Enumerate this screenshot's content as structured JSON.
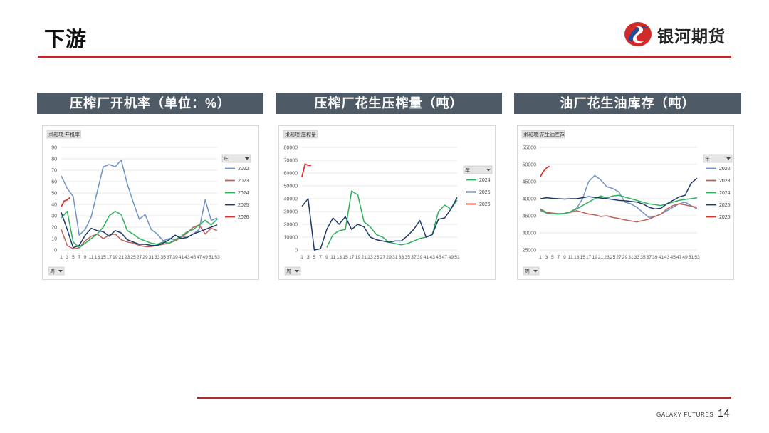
{
  "page": {
    "title": "下游",
    "brand": "银河期货",
    "footer": "GALAXY FUTURES",
    "page_number": "14"
  },
  "colors": {
    "2022": "#6f93c6",
    "2023": "#c0625a",
    "2024": "#2db15c",
    "2025": "#1f3a68",
    "2026": "#d8342c"
  },
  "panels": [
    {
      "header": "压榨厂开机率（单位：%）"
    },
    {
      "header": "压榨厂花生压榨量（吨）"
    },
    {
      "header": "油厂花生油库存（吨）"
    }
  ],
  "chart_data": [
    {
      "type": "line",
      "field_tag": "求和项:开机率",
      "axis_button": "周",
      "legend_title": "年",
      "ylim": [
        0,
        90
      ],
      "yticks": [
        0,
        10,
        20,
        30,
        40,
        50,
        60,
        70,
        80,
        90
      ],
      "xticks": [
        "1",
        "3",
        "5",
        "7",
        "9",
        "11",
        "13",
        "15",
        "17",
        "19",
        "21",
        "23",
        "25",
        "27",
        "29",
        "31",
        "33",
        "35",
        "37",
        "39",
        "41",
        "43",
        "45",
        "47",
        "49",
        "51",
        "53"
      ],
      "x_range": [
        1,
        53
      ],
      "series": [
        {
          "name": "2022",
          "x": [
            1,
            3,
            5,
            7,
            9,
            11,
            13,
            15,
            17,
            19,
            21,
            23,
            25,
            27,
            29,
            31,
            33,
            35,
            37,
            39,
            41,
            43,
            45,
            47,
            49,
            51,
            53
          ],
          "values": [
            65,
            54,
            47,
            13,
            18,
            29,
            51,
            73,
            75,
            73,
            79,
            58,
            42,
            27,
            31,
            18,
            14,
            8,
            10,
            9,
            12,
            11,
            14,
            18,
            44,
            26,
            28
          ]
        },
        {
          "name": "2023",
          "x": [
            1,
            3,
            5,
            7,
            9,
            11,
            13,
            15,
            17,
            19,
            21,
            23,
            25,
            27,
            29,
            31,
            33,
            35,
            37,
            39,
            41,
            43,
            45,
            47,
            49,
            51,
            53
          ],
          "values": [
            18,
            4,
            1,
            2,
            8,
            12,
            14,
            10,
            13,
            14,
            9,
            7,
            6,
            4,
            3,
            3,
            4,
            5,
            6,
            8,
            11,
            15,
            20,
            22,
            14,
            19,
            17
          ]
        },
        {
          "name": "2024",
          "x": [
            1,
            3,
            5,
            7,
            9,
            11,
            13,
            15,
            17,
            19,
            21,
            23,
            25,
            27,
            29,
            31,
            33,
            35,
            37,
            39,
            41,
            43,
            45,
            47,
            49,
            51,
            53
          ],
          "values": [
            28,
            34,
            7,
            2,
            6,
            10,
            14,
            20,
            30,
            34,
            31,
            17,
            14,
            10,
            8,
            6,
            5,
            7,
            6,
            9,
            12,
            16,
            18,
            22,
            26,
            22,
            27
          ]
        },
        {
          "name": "2025",
          "x": [
            1,
            3,
            5,
            7,
            9,
            11,
            13,
            15,
            17,
            19,
            21,
            23,
            25,
            27,
            29,
            31,
            33,
            35,
            37,
            39,
            41,
            43,
            45,
            47,
            49,
            51,
            53
          ],
          "values": [
            33,
            18,
            2,
            4,
            13,
            19,
            17,
            16,
            12,
            17,
            15,
            9,
            7,
            5,
            5,
            4,
            4,
            6,
            9,
            13,
            10,
            11,
            14,
            16,
            18,
            20,
            22
          ]
        },
        {
          "name": "2026",
          "x": [
            1,
            2,
            3,
            4
          ],
          "values": [
            38,
            43,
            44,
            46
          ]
        }
      ]
    },
    {
      "type": "line",
      "field_tag": "求和项:压榨量",
      "axis_button": "周",
      "legend_title": "年",
      "ylim": [
        0,
        80000
      ],
      "yticks": [
        0,
        10000,
        20000,
        30000,
        40000,
        50000,
        60000,
        70000,
        80000
      ],
      "xticks": [
        "1",
        "3",
        "5",
        "7",
        "9",
        "11",
        "13",
        "15",
        "17",
        "19",
        "21",
        "23",
        "25",
        "27",
        "29",
        "31",
        "33",
        "35",
        "37",
        "39",
        "41",
        "43",
        "45",
        "47",
        "49",
        "51"
      ],
      "x_range": [
        1,
        51
      ],
      "series": [
        {
          "name": "2024",
          "x": [
            9,
            11,
            13,
            15,
            17,
            19,
            21,
            23,
            25,
            27,
            29,
            31,
            33,
            35,
            37,
            39,
            41,
            43,
            45,
            47,
            49,
            51
          ],
          "values": [
            2000,
            12000,
            15000,
            16000,
            46000,
            43000,
            22000,
            18000,
            12000,
            10000,
            6000,
            5000,
            4000,
            5000,
            7000,
            9000,
            10000,
            12000,
            30000,
            35000,
            32000,
            39000
          ]
        },
        {
          "name": "2025",
          "x": [
            1,
            3,
            5,
            7,
            9,
            11,
            13,
            15,
            17,
            19,
            21,
            23,
            25,
            27,
            29,
            31,
            33,
            35,
            37,
            39,
            41,
            43,
            45,
            47,
            49,
            51
          ],
          "values": [
            34000,
            40000,
            0,
            1000,
            16000,
            25000,
            20000,
            26000,
            16000,
            20000,
            18000,
            10000,
            8000,
            7000,
            6000,
            7000,
            7000,
            11000,
            16000,
            23000,
            10000,
            12000,
            24000,
            25000,
            32000,
            41000
          ]
        },
        {
          "name": "2026",
          "x": [
            1,
            2,
            3,
            4
          ],
          "values": [
            57000,
            67000,
            66000,
            66000
          ]
        }
      ]
    },
    {
      "type": "line",
      "field_tag": "求和项:花生油库存",
      "axis_button": "周",
      "legend_title": "年",
      "ylim": [
        25000,
        55000
      ],
      "yticks": [
        25000,
        30000,
        35000,
        40000,
        45000,
        50000,
        55000
      ],
      "xticks": [
        "1",
        "3",
        "5",
        "7",
        "9",
        "11",
        "13",
        "15",
        "17",
        "19",
        "21",
        "23",
        "25",
        "27",
        "29",
        "31",
        "33",
        "35",
        "37",
        "39",
        "41",
        "43",
        "45",
        "47",
        "49",
        "51",
        "53"
      ],
      "x_range": [
        1,
        53
      ],
      "series": [
        {
          "name": "2022",
          "x": [
            1,
            3,
            5,
            7,
            9,
            11,
            13,
            15,
            17,
            19,
            21,
            23,
            25,
            27,
            29,
            31,
            33,
            35,
            37,
            39,
            41,
            43,
            45,
            47,
            49,
            51,
            53
          ],
          "values": [
            36500,
            35800,
            35600,
            35500,
            35700,
            36200,
            37200,
            40000,
            45000,
            46800,
            45500,
            43500,
            43000,
            42000,
            39000,
            38500,
            37500,
            36000,
            34500,
            34800,
            35500,
            36500,
            37500,
            38500,
            39000,
            38000,
            37000
          ]
        },
        {
          "name": "2023",
          "x": [
            1,
            3,
            5,
            7,
            9,
            11,
            13,
            15,
            17,
            19,
            21,
            23,
            25,
            27,
            29,
            31,
            33,
            35,
            37,
            39,
            41,
            43,
            45,
            47,
            49,
            51,
            53
          ],
          "values": [
            37000,
            36000,
            35800,
            35600,
            35700,
            36000,
            36500,
            36000,
            35500,
            35300,
            34800,
            35000,
            34500,
            34200,
            33800,
            33500,
            33200,
            33600,
            34000,
            34800,
            35500,
            37000,
            38000,
            38500,
            38200,
            37800,
            37500
          ]
        },
        {
          "name": "2024",
          "x": [
            1,
            3,
            5,
            7,
            9,
            11,
            13,
            15,
            17,
            19,
            21,
            23,
            25,
            27,
            29,
            31,
            33,
            35,
            37,
            39,
            41,
            43,
            45,
            47,
            49,
            51,
            53
          ],
          "values": [
            36800,
            35800,
            35600,
            35500,
            35600,
            36200,
            37000,
            38000,
            39000,
            40000,
            40800,
            40200,
            40800,
            41000,
            40500,
            40000,
            39500,
            39000,
            38500,
            38300,
            38000,
            38500,
            39000,
            39500,
            39800,
            40000,
            40300
          ]
        },
        {
          "name": "2025",
          "x": [
            1,
            3,
            5,
            7,
            9,
            11,
            13,
            15,
            17,
            19,
            21,
            23,
            25,
            27,
            29,
            31,
            33,
            35,
            37,
            39,
            41,
            43,
            45,
            47,
            49,
            51,
            53
          ],
          "values": [
            40000,
            40300,
            40100,
            40000,
            39900,
            40000,
            40000,
            40300,
            40600,
            40400,
            40200,
            40000,
            39800,
            39500,
            39400,
            39200,
            39000,
            38500,
            37500,
            37000,
            37200,
            38500,
            39500,
            40500,
            41000,
            44500,
            46000
          ]
        },
        {
          "name": "2026",
          "x": [
            1,
            2,
            3,
            4
          ],
          "values": [
            46500,
            48000,
            49000,
            49500
          ]
        }
      ]
    }
  ]
}
